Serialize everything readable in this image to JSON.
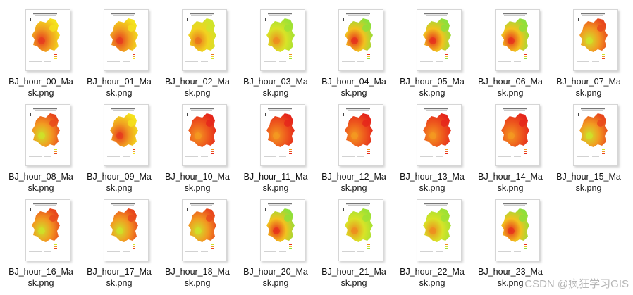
{
  "files": [
    {
      "name": "BJ_hour_00_Mask.png",
      "line1": "BJ_hour_00_Ma",
      "line2": "sk.png",
      "palette": "yellow"
    },
    {
      "name": "BJ_hour_01_Mask.png",
      "line1": "BJ_hour_01_Ma",
      "line2": "sk.png",
      "palette": "yellow"
    },
    {
      "name": "BJ_hour_02_Mask.png",
      "line1": "BJ_hour_02_Ma",
      "line2": "sk.png",
      "palette": "yellowgreen"
    },
    {
      "name": "BJ_hour_03_Mask.png",
      "line1": "BJ_hour_03_Ma",
      "line2": "sk.png",
      "palette": "green"
    },
    {
      "name": "BJ_hour_04_Mask.png",
      "line1": "BJ_hour_04_Ma",
      "line2": "sk.png",
      "palette": "mixed"
    },
    {
      "name": "BJ_hour_05_Mask.png",
      "line1": "BJ_hour_05_Ma",
      "line2": "sk.png",
      "palette": "mixed"
    },
    {
      "name": "BJ_hour_06_Mask.png",
      "line1": "BJ_hour_06_Ma",
      "line2": "sk.png",
      "palette": "mixed"
    },
    {
      "name": "BJ_hour_07_Mask.png",
      "line1": "BJ_hour_07_Ma",
      "line2": "sk.png",
      "palette": "orange"
    },
    {
      "name": "BJ_hour_08_Mask.png",
      "line1": "BJ_hour_08_Ma",
      "line2": "sk.png",
      "palette": "orange"
    },
    {
      "name": "BJ_hour_09_Mask.png",
      "line1": "BJ_hour_09_Ma",
      "line2": "sk.png",
      "palette": "yellow"
    },
    {
      "name": "BJ_hour_10_Mask.png",
      "line1": "BJ_hour_10_Ma",
      "line2": "sk.png",
      "palette": "red"
    },
    {
      "name": "BJ_hour_11_Mask.png",
      "line1": "BJ_hour_11_Ma",
      "line2": "sk.png",
      "palette": "red"
    },
    {
      "name": "BJ_hour_12_Mask.png",
      "line1": "BJ_hour_12_Ma",
      "line2": "sk.png",
      "palette": "red"
    },
    {
      "name": "BJ_hour_13_Mask.png",
      "line1": "BJ_hour_13_Ma",
      "line2": "sk.png",
      "palette": "red"
    },
    {
      "name": "BJ_hour_14_Mask.png",
      "line1": "BJ_hour_14_Ma",
      "line2": "sk.png",
      "palette": "red"
    },
    {
      "name": "BJ_hour_15_Mask.png",
      "line1": "BJ_hour_15_Ma",
      "line2": "sk.png",
      "palette": "orange"
    },
    {
      "name": "BJ_hour_16_Mask.png",
      "line1": "BJ_hour_16_Ma",
      "line2": "sk.png",
      "palette": "orange"
    },
    {
      "name": "BJ_hour_17_Mask.png",
      "line1": "BJ_hour_17_Ma",
      "line2": "sk.png",
      "palette": "orange"
    },
    {
      "name": "BJ_hour_18_Mask.png",
      "line1": "BJ_hour_18_Ma",
      "line2": "sk.png",
      "palette": "orange"
    },
    {
      "name": "BJ_hour_20_Mask.png",
      "line1": "BJ_hour_20_Ma",
      "line2": "sk.png",
      "palette": "mixed"
    },
    {
      "name": "BJ_hour_21_Mask.png",
      "line1": "BJ_hour_21_Ma",
      "line2": "sk.png",
      "palette": "green"
    },
    {
      "name": "BJ_hour_22_Mask.png",
      "line1": "BJ_hour_22_Ma",
      "line2": "sk.png",
      "palette": "green"
    },
    {
      "name": "BJ_hour_23_Mask.png",
      "line1": "BJ_hour_23_Ma",
      "line2": "sk.png",
      "palette": "mixed"
    }
  ],
  "palettes": {
    "yellow": {
      "a": "#f4e21c",
      "b": "#f0a020",
      "c": "#e63a1e"
    },
    "yellowgreen": {
      "a": "#cfe42a",
      "b": "#f1d320",
      "c": "#e9741d"
    },
    "green": {
      "a": "#9ee234",
      "b": "#d9e327",
      "c": "#ee8c1f"
    },
    "mixed": {
      "a": "#8ee03a",
      "b": "#f2c21f",
      "c": "#e6301c"
    },
    "orange": {
      "a": "#e8471c",
      "b": "#f29a21",
      "c": "#cde32a"
    },
    "red": {
      "a": "#e5261b",
      "b": "#ee5c1d",
      "c": "#f39a21"
    }
  },
  "watermark": "CSDN @疯狂学习GIS"
}
